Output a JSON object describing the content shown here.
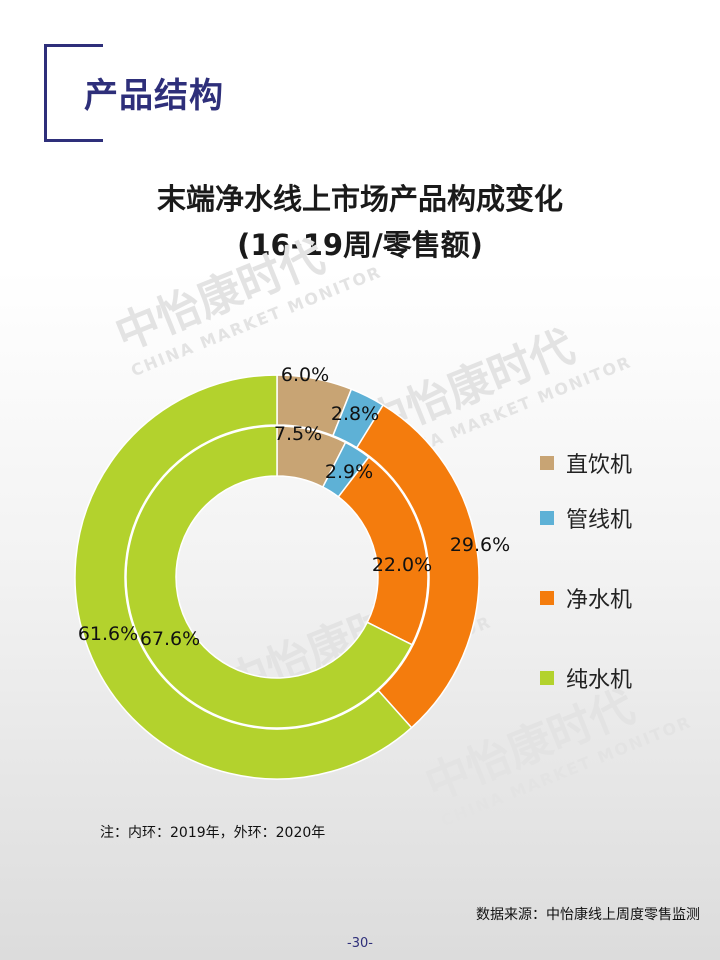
{
  "header": {
    "title": "产品结构"
  },
  "chart": {
    "title_line1": "末端净水线上市场产品构成变化",
    "title_line2": "(16-19周/零售额)"
  },
  "watermark": {
    "cn": "中怡康时代",
    "en": "CHINA MARKET MONITOR"
  },
  "chart_data": {
    "type": "pie",
    "subtype": "donut-two-ring",
    "categories": [
      "直饮机",
      "管线机",
      "净水机",
      "纯水机"
    ],
    "colors": [
      "#c8a474",
      "#5eb1d6",
      "#f47c0d",
      "#b3d22d"
    ],
    "series": [
      {
        "name": "2019",
        "ring": "inner",
        "values": [
          7.5,
          2.9,
          22.0,
          67.6
        ],
        "labels": [
          "7.5%",
          "2.9%",
          "22.0%",
          "67.6%"
        ]
      },
      {
        "name": "2020",
        "ring": "outer",
        "values": [
          6.0,
          2.8,
          29.6,
          61.6
        ],
        "labels": [
          "6.0%",
          "2.8%",
          "29.6%",
          "61.6%"
        ]
      }
    ],
    "legend_position": "right"
  },
  "note": "注：内环：2019年，外环：2020年",
  "source": "数据来源：中怡康线上周度零售监测",
  "page_number": "-30-"
}
